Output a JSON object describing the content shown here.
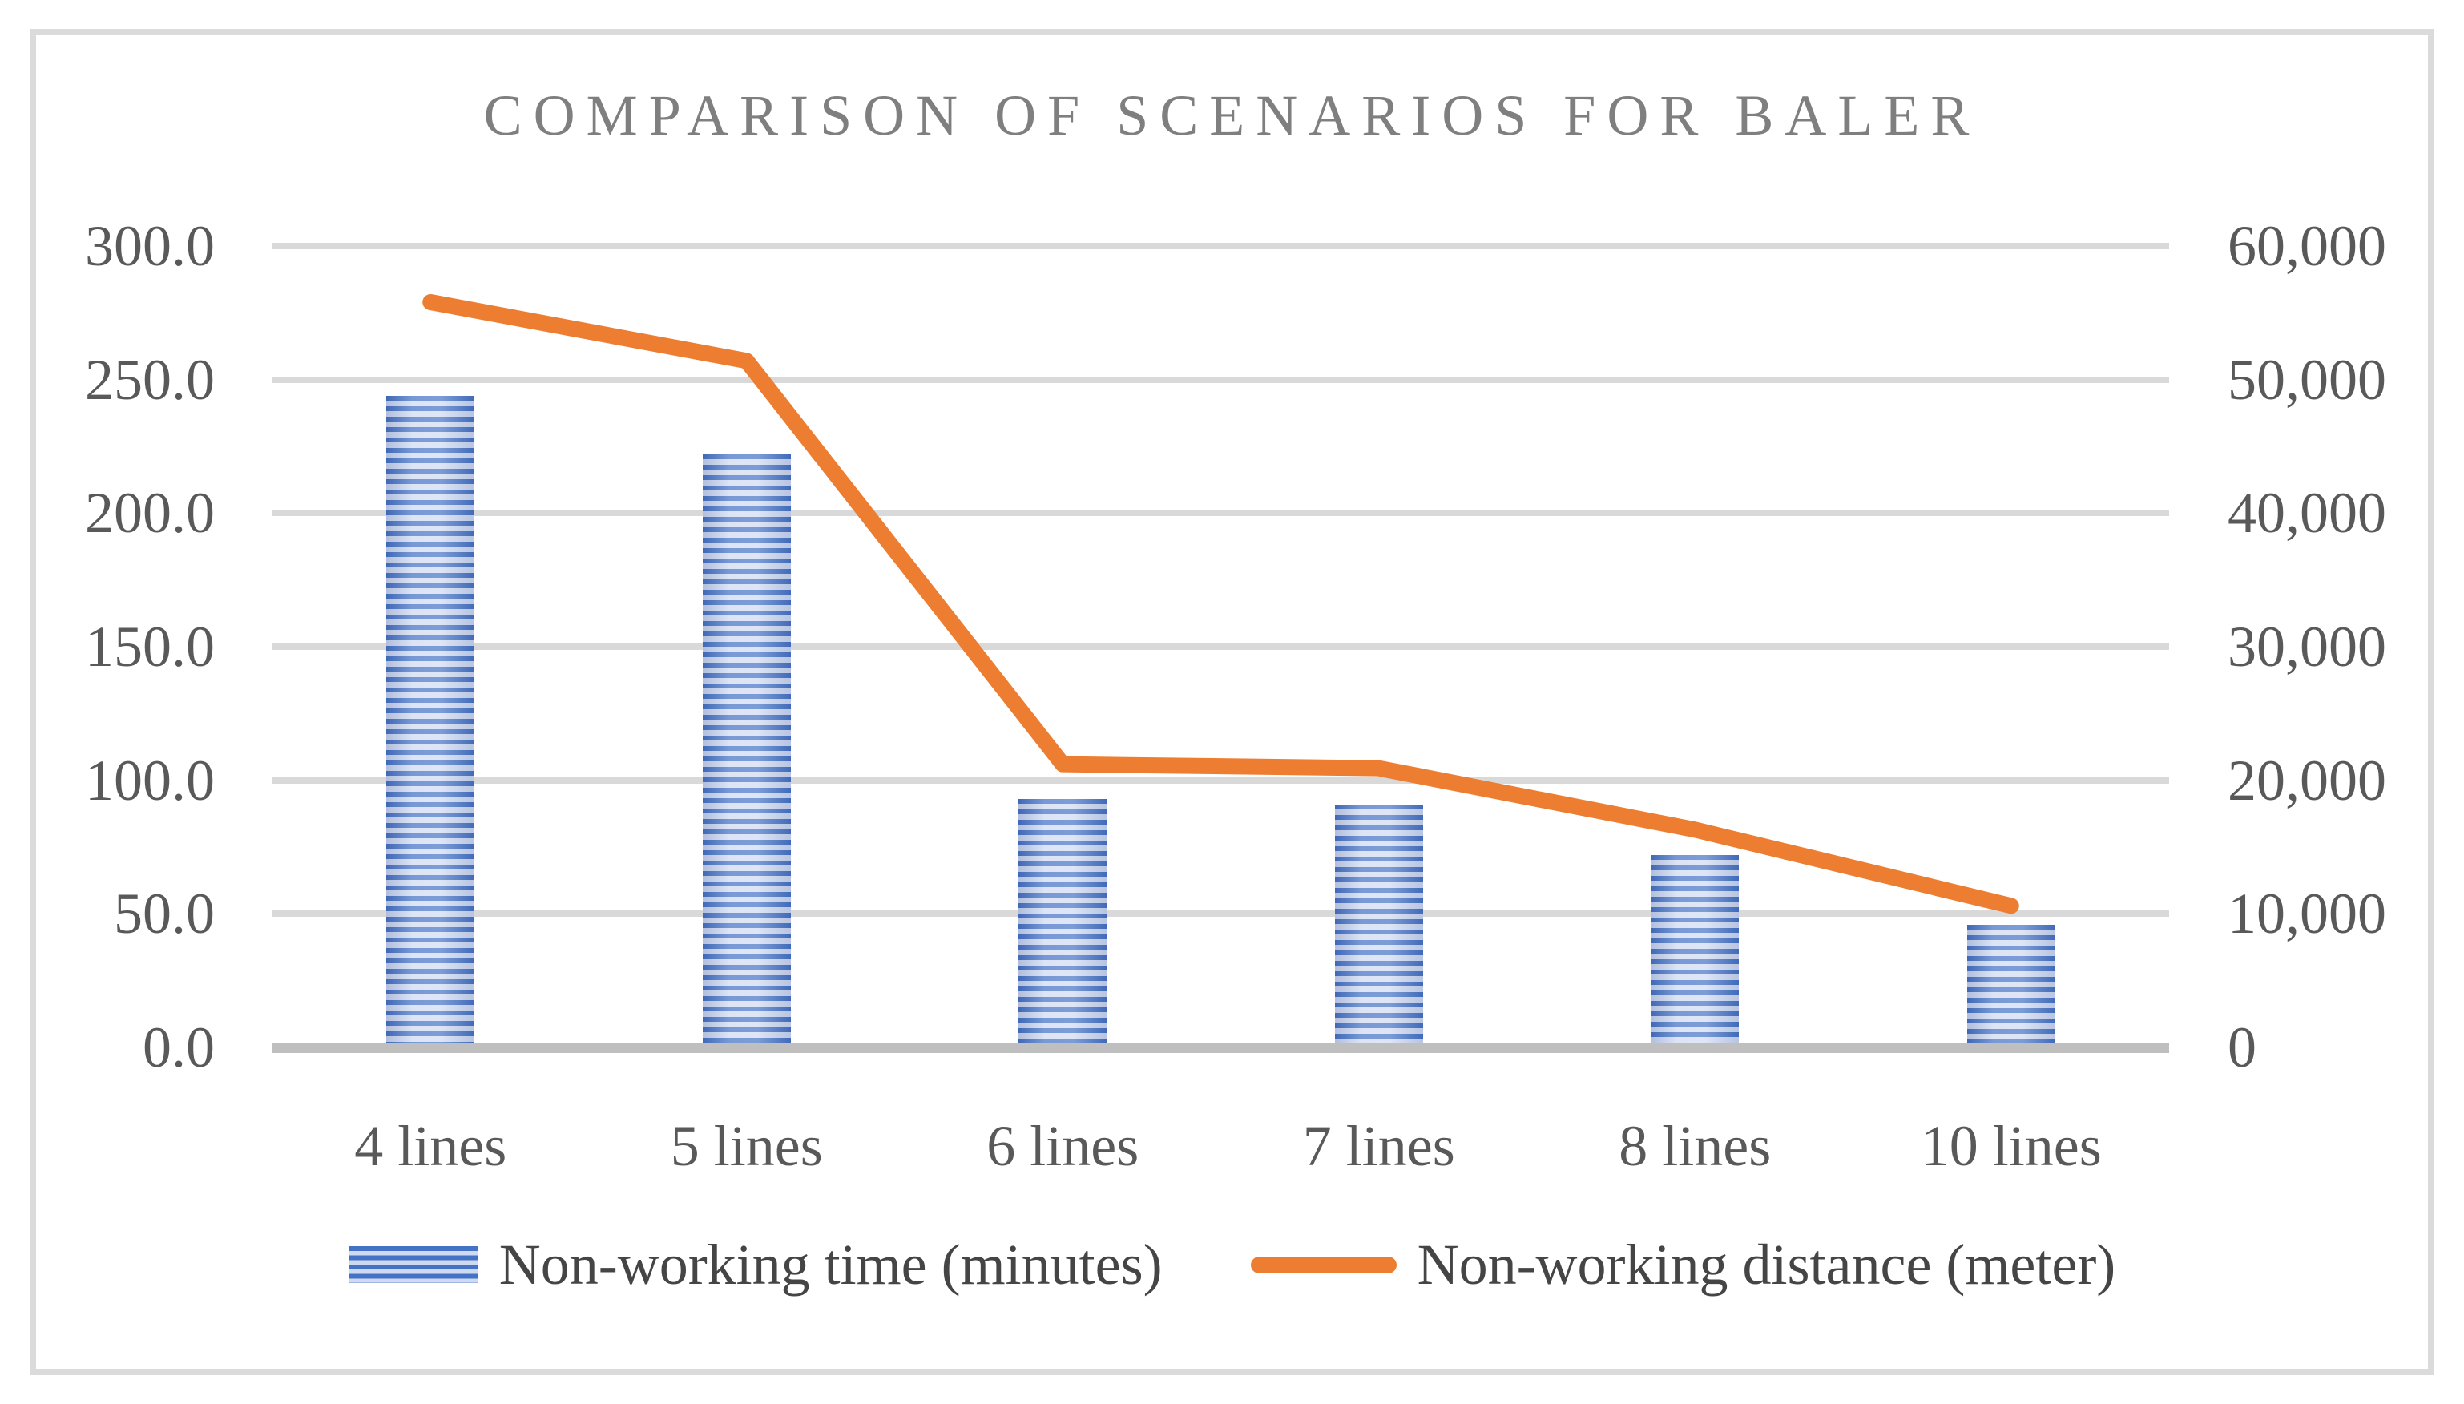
{
  "figure": {
    "title": "COMPARISON OF SCENARIOS FOR BALER",
    "colors": {
      "bar_dark": "#4472C4",
      "bar_light": "#CFDAF2",
      "line": "#ED7D31",
      "gridline": "#D9D9D9",
      "axis_line": "#BFBFBF",
      "title_text": "#7F7F7F",
      "tick_text": "#595959",
      "border": "#DBDBDB"
    }
  },
  "chart_data": {
    "type": "bar",
    "subtype": "combo-bar-line-dual-axis",
    "title": "COMPARISON OF SCENARIOS FOR BALER",
    "categories": [
      "4 lines",
      "5 lines",
      "6 lines",
      "7 lines",
      "8 lines",
      "10 lines"
    ],
    "series": [
      {
        "name": "Non-working time (minutes)",
        "type": "bar",
        "axis": "left",
        "values": [
          244,
          222,
          93,
          91,
          72,
          46
        ]
      },
      {
        "name": "Non-working distance (meter)",
        "type": "line",
        "axis": "right",
        "values": [
          55800,
          51400,
          21200,
          20900,
          16300,
          10600
        ]
      }
    ],
    "left_axis": {
      "min": 0,
      "max": 300,
      "step": 50,
      "tick_labels": [
        "0.0",
        "50.0",
        "100.0",
        "150.0",
        "200.0",
        "250.0",
        "300.0"
      ]
    },
    "right_axis": {
      "min": 0,
      "max": 60000,
      "step": 10000,
      "tick_labels": [
        "0",
        "10,000",
        "20,000",
        "30,000",
        "40,000",
        "50,000",
        "60,000"
      ]
    },
    "grid": true,
    "legend_position": "bottom",
    "xlabel": "",
    "ylabel_left": "",
    "ylabel_right": ""
  }
}
